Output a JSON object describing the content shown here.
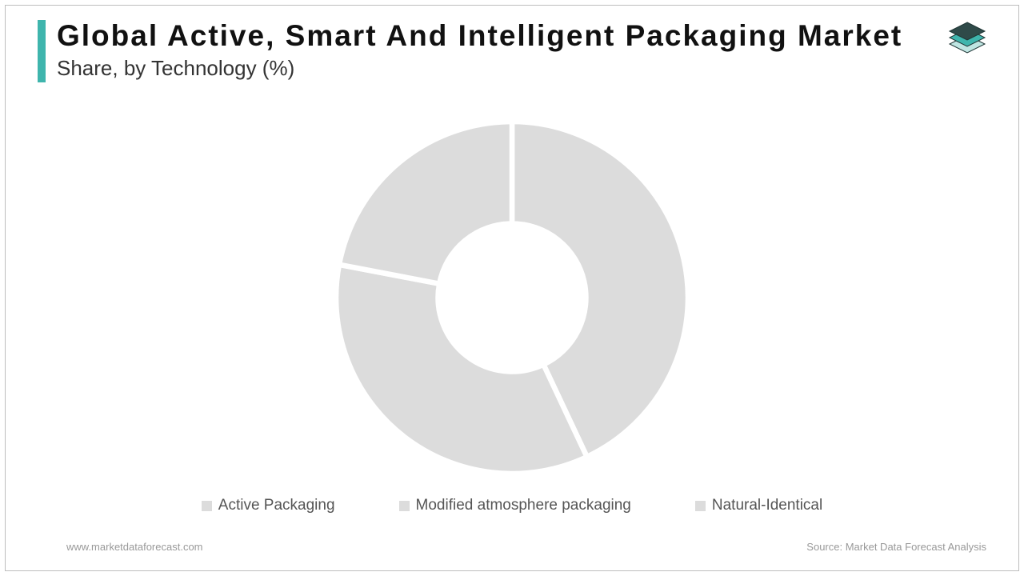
{
  "header": {
    "title": "Global Active, Smart And Intelligent Packaging Market",
    "subtitle": "Share, by Technology (%)",
    "accent_color": "#3fb5ad"
  },
  "logo": {
    "top_fill": "#2f4a49",
    "mid_fill": "#3fb5ad",
    "bot_fill": "#bfe5e2",
    "stroke": "#1f3534"
  },
  "chart": {
    "type": "donut",
    "categories": [
      "Active Packaging",
      "Modified atmosphere packaging",
      "Natural-Identical"
    ],
    "values": [
      43,
      35,
      22
    ],
    "slice_colors": [
      "#dcdcdc",
      "#dcdcdc",
      "#dcdcdc"
    ],
    "gap_color": "#ffffff",
    "gap_width": 3,
    "outer_radius_pct": 100,
    "inner_radius_pct": 42,
    "background_color": "#ffffff"
  },
  "legend": {
    "items": [
      {
        "label": "Active Packaging",
        "color": "#dcdcdc"
      },
      {
        "label": "Modified atmosphere packaging",
        "color": "#dcdcdc"
      },
      {
        "label": "Natural-Identical",
        "color": "#dcdcdc"
      }
    ],
    "bullet": "■",
    "text_color": "#555555",
    "fontsize": 19
  },
  "footer": {
    "left": "www.marketdataforecast.com",
    "right": "Source: Market Data Forecast Analysis",
    "color": "#999999"
  },
  "frame": {
    "border_color": "#bdbdbd"
  }
}
